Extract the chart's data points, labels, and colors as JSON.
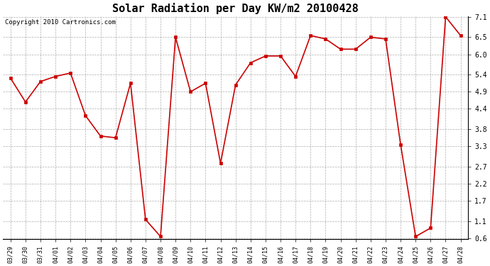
{
  "title": "Solar Radiation per Day KW/m2 20100428",
  "copyright": "Copyright 2010 Cartronics.com",
  "dates": [
    "03/29",
    "03/30",
    "03/31",
    "04/01",
    "04/02",
    "04/03",
    "04/04",
    "04/05",
    "04/06",
    "04/07",
    "04/08",
    "04/09",
    "04/10",
    "04/11",
    "04/12",
    "04/13",
    "04/14",
    "04/15",
    "04/16",
    "04/17",
    "04/18",
    "04/19",
    "04/20",
    "04/21",
    "04/22",
    "04/23",
    "04/24",
    "04/25",
    "04/26",
    "04/27",
    "04/28"
  ],
  "values": [
    5.3,
    4.6,
    5.2,
    5.35,
    5.45,
    4.2,
    3.6,
    3.55,
    5.15,
    1.15,
    0.65,
    6.5,
    4.9,
    5.15,
    2.8,
    5.1,
    5.75,
    5.95,
    5.95,
    5.35,
    6.55,
    6.45,
    6.15,
    6.15,
    6.5,
    6.45,
    3.35,
    0.65,
    0.9,
    7.1,
    6.55
  ],
  "line_color": "#cc0000",
  "marker": "s",
  "marker_size": 2.5,
  "background_color": "#ffffff",
  "grid_color": "#999999",
  "ylim_min": 0.6,
  "ylim_max": 7.1,
  "yticks": [
    0.6,
    1.1,
    1.7,
    2.2,
    2.7,
    3.3,
    3.8,
    4.4,
    4.9,
    5.4,
    6.0,
    6.5,
    7.1
  ],
  "title_fontsize": 11,
  "copyright_fontsize": 6.5,
  "tick_fontsize": 6,
  "ytick_fontsize": 7
}
